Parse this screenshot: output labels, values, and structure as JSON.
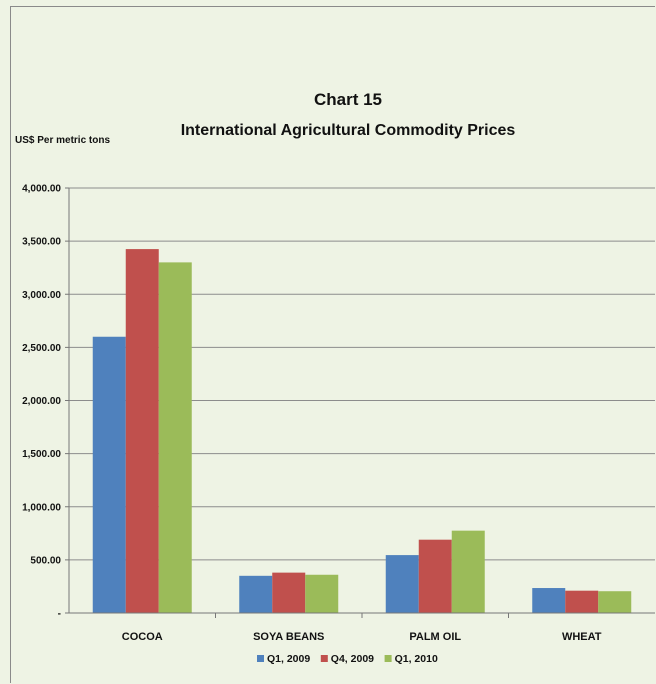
{
  "chart_data": {
    "type": "bar",
    "title": "Chart 15",
    "subtitle": "International Agricultural Commodity Prices",
    "ylabel": "US$ Per metric tons",
    "xlabel": "",
    "categories": [
      "COCOA",
      "SOYA BEANS",
      "PALM OIL",
      "WHEAT"
    ],
    "series": [
      {
        "name": "Q1, 2009",
        "color": "#4f81bd",
        "values": [
          2600,
          350,
          545,
          235
        ]
      },
      {
        "name": "Q4, 2009",
        "color": "#c0504d",
        "values": [
          3425,
          380,
          690,
          210
        ]
      },
      {
        "name": "Q1, 2010",
        "color": "#9bbb59",
        "values": [
          3300,
          360,
          775,
          205
        ]
      }
    ],
    "ylim": [
      0,
      4000
    ],
    "yticks": [
      0,
      500,
      1000,
      1500,
      2000,
      2500,
      3000,
      3500,
      4000
    ],
    "ytick_labels": [
      "-",
      "500.00",
      "1,000.00",
      "1,500.00",
      "2,000.00",
      "2,500.00",
      "3,000.00",
      "3,500.00",
      "4,000.00"
    ],
    "grid": true,
    "legend_position": "bottom"
  }
}
